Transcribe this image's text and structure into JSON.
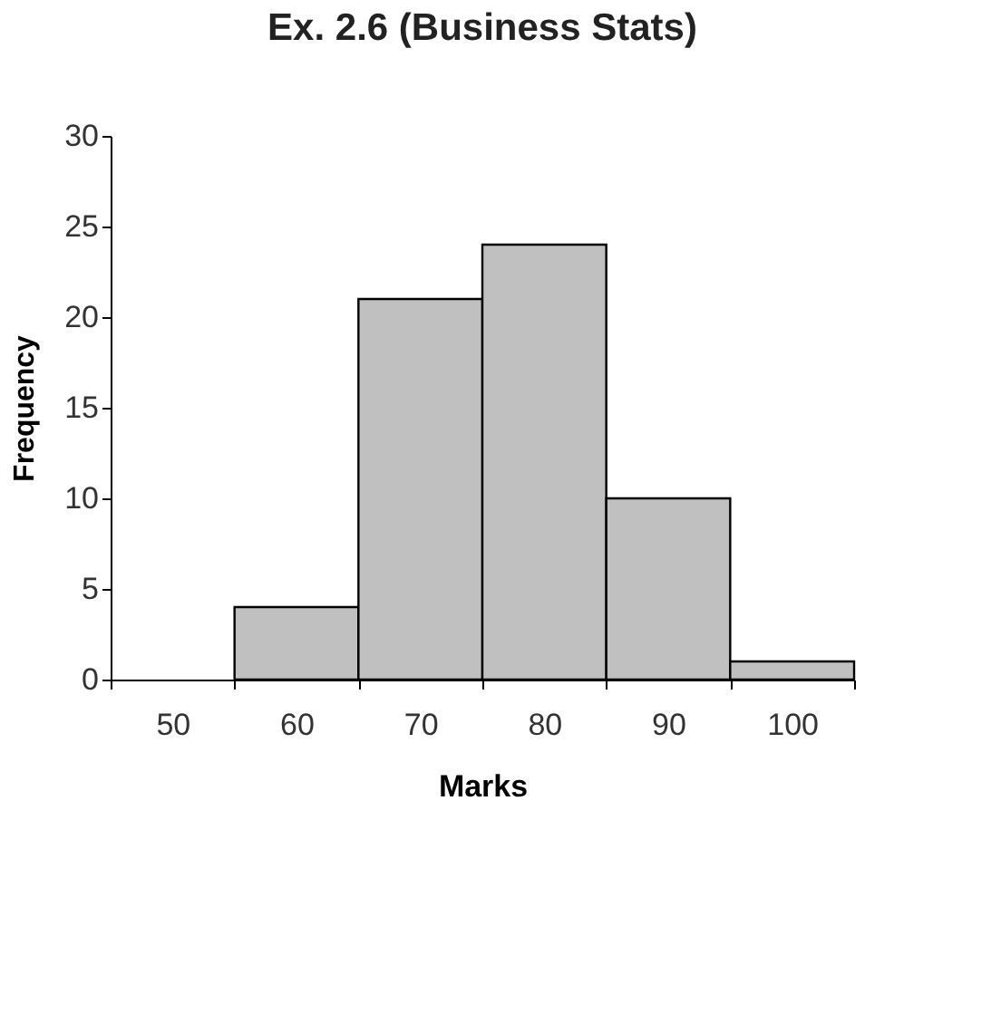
{
  "chart_data": {
    "type": "bar",
    "title": "Ex. 2.6 (Business Stats)",
    "xlabel": "Marks",
    "ylabel": "Frequency",
    "categories": [
      "50",
      "60",
      "70",
      "80",
      "90",
      "100"
    ],
    "values": [
      0,
      4,
      21,
      24,
      10,
      1
    ],
    "color": "#c0c0c0",
    "ylim": [
      0,
      30
    ],
    "yticks": [
      0,
      5,
      10,
      15,
      20,
      25,
      30
    ],
    "grid": false
  }
}
